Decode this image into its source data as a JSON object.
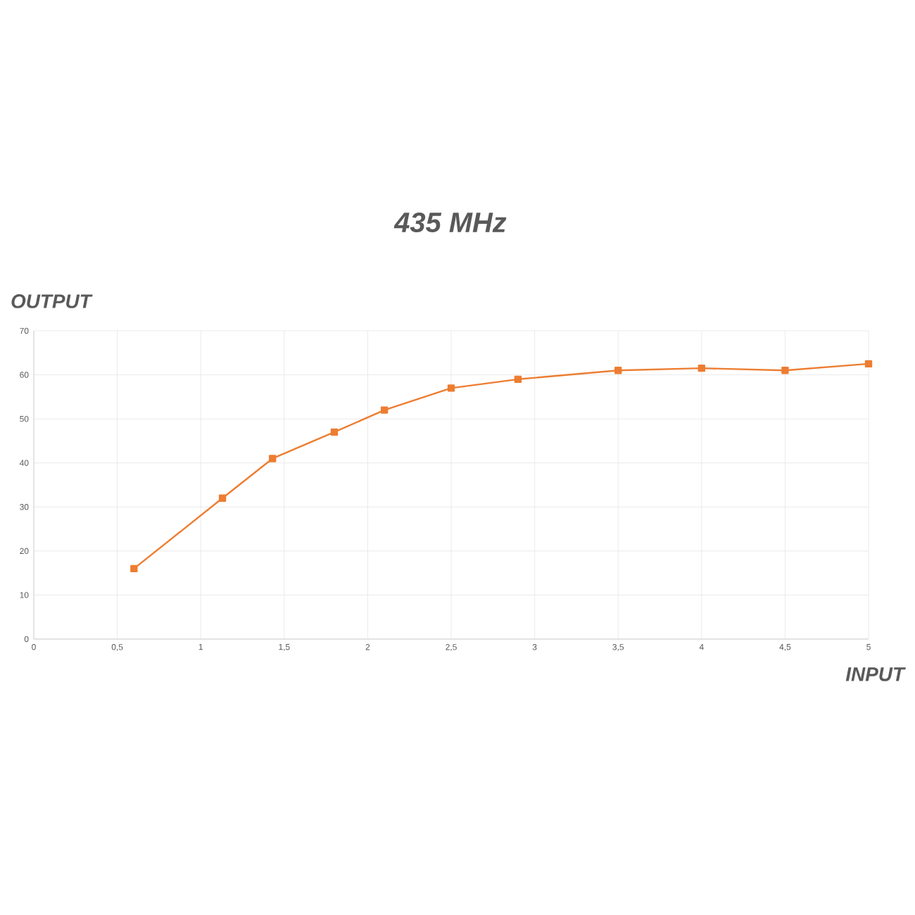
{
  "chart_data": {
    "type": "line",
    "title": "435 MHz",
    "xlabel": "INPUT",
    "ylabel": "OUTPUT",
    "x": [
      0.6,
      1.13,
      1.43,
      1.8,
      2.1,
      2.5,
      2.9,
      3.5,
      4,
      4.5,
      5
    ],
    "series": [
      {
        "color": "#ed7d31",
        "values": [
          16,
          32,
          41,
          47,
          52,
          57,
          59,
          61,
          61.5,
          61,
          62.5
        ]
      }
    ],
    "xlim": [
      0,
      5
    ],
    "ylim": [
      0,
      70
    ],
    "xticks": [
      0,
      {
        "value": 0.5,
        "label": "0,5"
      },
      1,
      {
        "value": 1.5,
        "label": "1,5"
      },
      2,
      {
        "value": 2.5,
        "label": "2,5"
      },
      3,
      {
        "value": 3.5,
        "label": "3,5"
      },
      4,
      {
        "value": 4.5,
        "label": "4,5"
      },
      5
    ],
    "yticks": [
      0,
      10,
      20,
      30,
      40,
      50,
      60,
      70
    ],
    "grid": true,
    "marker": "square",
    "line_style": "solid"
  }
}
